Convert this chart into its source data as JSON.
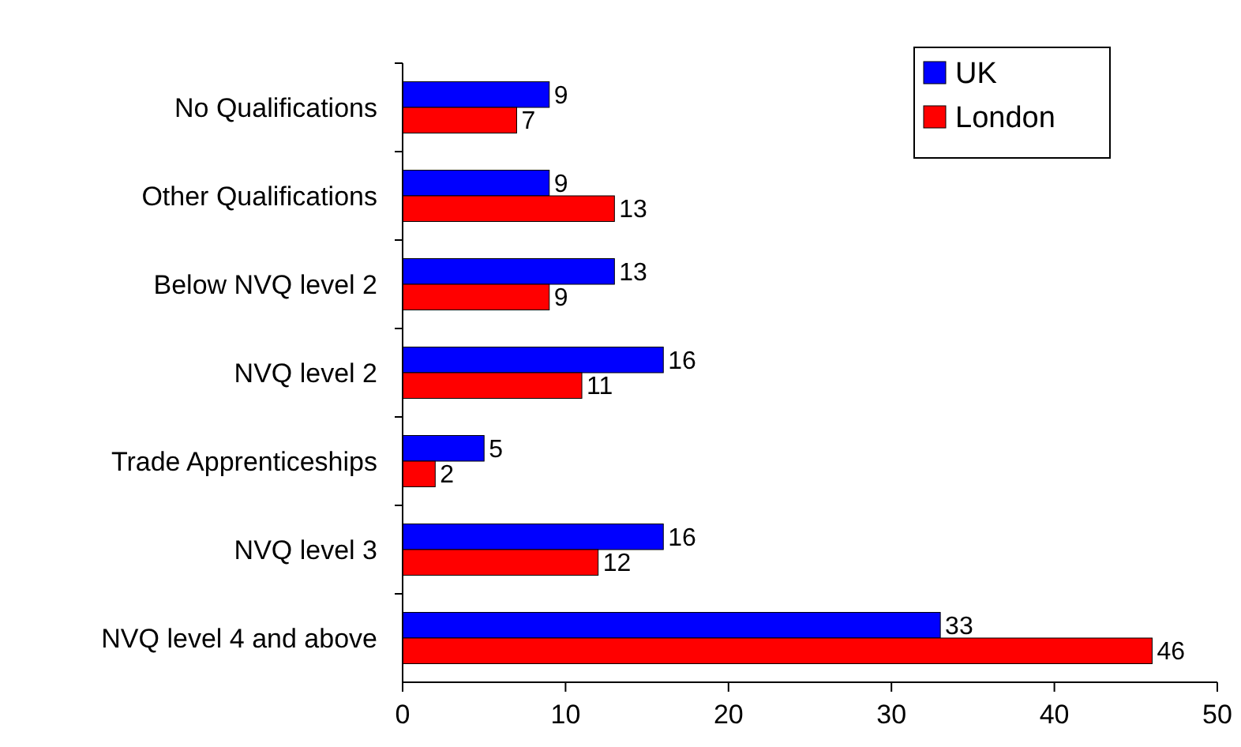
{
  "chart_data": {
    "type": "bar",
    "orientation": "horizontal",
    "categories": [
      "No Qualifications",
      "Other Qualifications",
      "Below NVQ level 2",
      "NVQ level 2",
      "Trade Apprenticeships",
      "NVQ level 3",
      "NVQ level 4 and above"
    ],
    "series": [
      {
        "name": "UK",
        "color": "#0000ff",
        "values": [
          9,
          9,
          13,
          16,
          5,
          16,
          33
        ]
      },
      {
        "name": "London",
        "color": "#ff0000",
        "values": [
          7,
          13,
          9,
          11,
          2,
          12,
          46
        ]
      }
    ],
    "xlim": [
      0,
      50
    ],
    "xticks": [
      0,
      10,
      20,
      30,
      40,
      50
    ],
    "data_labels": true,
    "legend": "top right",
    "grid": false
  }
}
